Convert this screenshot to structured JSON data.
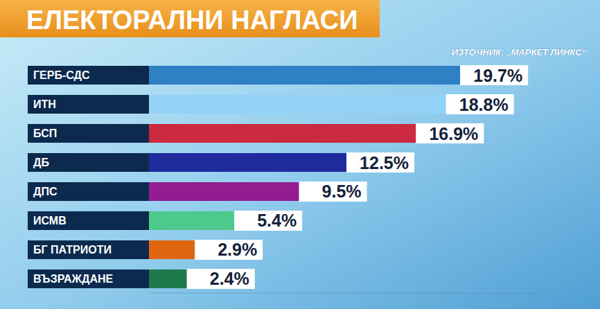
{
  "chart_data": {
    "type": "bar",
    "orientation": "horizontal",
    "title": "ЕЛЕКТОРАЛНИ НАГЛАСИ",
    "subtitle": "ИЗТОЧНИК: „МАРКЕТ ЛИНКС“",
    "categories": [
      "ГЕРБ-СДС",
      "ИТН",
      "БСП",
      "ДБ",
      "ДПС",
      "ИСМВ",
      "БГ ПАТРИОТИ",
      "ВЪЗРАЖДАНЕ"
    ],
    "values": [
      19.7,
      18.8,
      16.9,
      12.5,
      9.5,
      5.4,
      2.9,
      2.4
    ],
    "value_labels": [
      "19.7%",
      "18.8%",
      "16.9%",
      "12.5%",
      "9.5%",
      "5.4%",
      "2.9%",
      "2.4%"
    ],
    "colors": [
      "#2f80c4",
      "#92d2f6",
      "#cc2a40",
      "#1f2a9c",
      "#921c90",
      "#4ec98c",
      "#e0660f",
      "#1e7a4c"
    ],
    "xlim": [
      0,
      25
    ],
    "data_labels": true,
    "tick_labels": false,
    "grid": false
  }
}
